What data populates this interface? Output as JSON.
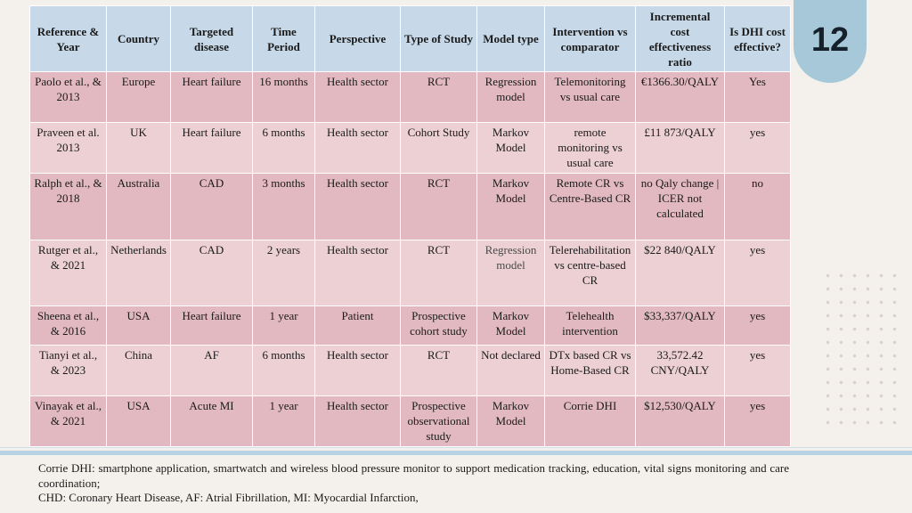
{
  "page_number": "12",
  "table": {
    "headers": [
      "Reference &\nYear",
      "Country",
      "Targeted\ndisease",
      "Time\nPeriod",
      "Perspective",
      "Type of Study",
      "Model type",
      "Intervention vs\ncomparator",
      "Incremental\ncost\neffectiveness\nratio",
      "Is DHI cost\neffective?"
    ],
    "rows": [
      [
        "Paolo et al., &\n2013",
        "Europe",
        "Heart failure",
        "16 months",
        "Health sector",
        "RCT",
        "Regression\nmodel",
        "Telemonitoring\nvs usual care",
        "€1366.30/QALY",
        "Yes"
      ],
      [
        "Praveen et al.\n2013",
        "UK",
        "Heart failure",
        "6 months",
        "Health sector",
        "Cohort Study",
        "Markov\nModel",
        "remote\nmonitoring vs\nusual care",
        "£11 873/QALY",
        "yes"
      ],
      [
        "Ralph et al., &\n2018",
        "Australia",
        "CAD",
        "3 months",
        "Health sector",
        "RCT",
        "Markov\nModel",
        "Remote CR vs\nCentre-Based CR",
        "no Qaly change |\nICER not\ncalculated",
        "no"
      ],
      [
        "Rutger et al.,\n& 2021",
        "Netherlands",
        "CAD",
        "2 years",
        "Health sector",
        "RCT",
        "Regression\nmodel",
        "Telerehabilitation\nvs centre-based\nCR",
        "$22 840/QALY",
        "yes"
      ],
      [
        "Sheena et al.,\n& 2016",
        "USA",
        "Heart failure",
        "1 year",
        "Patient",
        "Prospective\ncohort study",
        "Markov\nModel",
        "Telehealth\nintervention",
        "$33,337/QALY",
        "yes"
      ],
      [
        "Tianyi et al.,\n& 2023",
        "China",
        "AF",
        "6 months",
        "Health sector",
        "RCT",
        "Not declared",
        "DTx based CR vs\nHome-Based CR",
        "33,572.42\nCNY/QALY",
        "yes"
      ],
      [
        "Vinayak et al.,\n& 2021",
        "USA",
        "Acute MI",
        "1 year",
        "Health sector",
        "Prospective\nobservational\nstudy",
        "Markov\nModel",
        "Corrie DHI",
        "$12,530/QALY",
        "yes"
      ]
    ]
  },
  "footnotes": {
    "line1": "Corrie DHI: smartphone application, smartwatch and wireless blood pressure monitor to support medication tracking, education, vital signs monitoring and care coordination;",
    "line2": "CHD: Coronary Heart Disease, AF: Atrial Fibrillation, MI: Myocardial Infarction,"
  }
}
